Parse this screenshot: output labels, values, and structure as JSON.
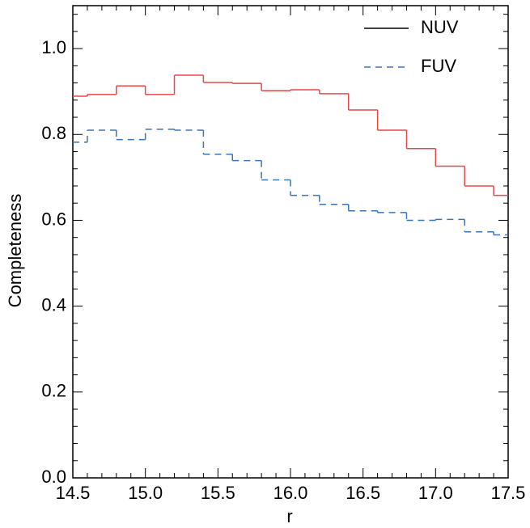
{
  "chart_data": {
    "type": "step-histogram",
    "xlabel": "r",
    "ylabel": "Completeness",
    "bins": [
      14.4,
      14.6,
      14.8,
      15.0,
      15.2,
      15.4,
      15.6,
      15.8,
      16.0,
      16.2,
      16.4,
      16.6,
      16.8,
      17.0,
      17.2,
      17.4,
      17.6
    ],
    "series": [
      {
        "name": "NUV",
        "color": "#e8474a",
        "legend_color": "#000000",
        "dashed": false,
        "values": [
          0.889,
          0.893,
          0.913,
          0.893,
          0.938,
          0.921,
          0.919,
          0.902,
          0.904,
          0.895,
          0.857,
          0.81,
          0.767,
          0.726,
          0.68,
          0.658
        ]
      },
      {
        "name": "FUV",
        "color": "#3d73b8",
        "legend_color": "#3d73b8",
        "dashed": true,
        "values": [
          0.782,
          0.81,
          0.788,
          0.812,
          0.81,
          0.754,
          0.739,
          0.694,
          0.658,
          0.637,
          0.622,
          0.618,
          0.6,
          0.602,
          0.573,
          0.566
        ]
      }
    ],
    "xlim": [
      14.5,
      17.5
    ],
    "xticks": [
      14.5,
      {
        "value": 15,
        "label": "15.0"
      },
      15.5,
      {
        "value": 16,
        "label": "16.0"
      },
      16.5,
      {
        "value": 17,
        "label": "17.0"
      },
      17.5
    ],
    "ylim": [
      0,
      1.1
    ],
    "yticks": [
      {
        "value": 0,
        "label": "0.0"
      },
      0.2,
      0.4,
      0.6,
      0.8,
      {
        "value": 1,
        "label": "1.0"
      }
    ],
    "legend": "upper right"
  }
}
